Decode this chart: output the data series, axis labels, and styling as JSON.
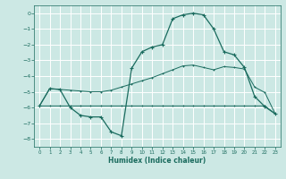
{
  "xlabel": "Humidex (Indice chaleur)",
  "bg_color": "#cce8e4",
  "grid_color": "#ffffff",
  "line_color": "#1a6b5e",
  "xlim": [
    -0.5,
    23.5
  ],
  "ylim": [
    -8.5,
    0.5
  ],
  "yticks": [
    0,
    -1,
    -2,
    -3,
    -4,
    -5,
    -6,
    -7,
    -8
  ],
  "xticks": [
    0,
    1,
    2,
    3,
    4,
    5,
    6,
    7,
    8,
    9,
    10,
    11,
    12,
    13,
    14,
    15,
    16,
    17,
    18,
    19,
    20,
    21,
    22,
    23
  ],
  "curve_flat_x": [
    0,
    1,
    2,
    3,
    4,
    5,
    6,
    7,
    8,
    9,
    10,
    11,
    12,
    13,
    14,
    15,
    16,
    17,
    18,
    19,
    20,
    21,
    22,
    23
  ],
  "curve_flat_y": [
    -5.9,
    -5.9,
    -5.9,
    -5.9,
    -5.9,
    -5.9,
    -5.9,
    -5.9,
    -5.9,
    -5.9,
    -5.9,
    -5.9,
    -5.9,
    -5.9,
    -5.9,
    -5.9,
    -5.9,
    -5.9,
    -5.9,
    -5.9,
    -5.9,
    -5.9,
    -5.9,
    -6.4
  ],
  "curve_trend_x": [
    0,
    1,
    2,
    3,
    4,
    5,
    6,
    7,
    8,
    9,
    10,
    11,
    12,
    13,
    14,
    15,
    16,
    17,
    18,
    19,
    20,
    21,
    22,
    23
  ],
  "curve_trend_y": [
    -5.9,
    -4.8,
    -4.85,
    -4.9,
    -4.95,
    -5.0,
    -5.0,
    -4.9,
    -4.7,
    -4.5,
    -4.3,
    -4.1,
    -3.85,
    -3.6,
    -3.35,
    -3.3,
    -3.45,
    -3.6,
    -3.4,
    -3.45,
    -3.55,
    -4.7,
    -5.05,
    -6.4
  ],
  "curve_main_x": [
    0,
    1,
    2,
    3,
    4,
    5,
    6,
    7,
    8,
    9,
    10,
    11,
    12,
    13,
    14,
    15,
    16,
    17,
    18,
    19,
    20,
    21,
    22,
    23
  ],
  "curve_main_y": [
    -5.9,
    -4.8,
    -4.85,
    -6.0,
    -6.5,
    -6.6,
    -6.6,
    -7.55,
    -7.8,
    -3.5,
    -2.45,
    -2.15,
    -2.0,
    -0.35,
    -0.1,
    0.0,
    -0.1,
    -1.0,
    -2.45,
    -2.65,
    -3.45,
    -5.3,
    -5.95,
    -6.4
  ]
}
